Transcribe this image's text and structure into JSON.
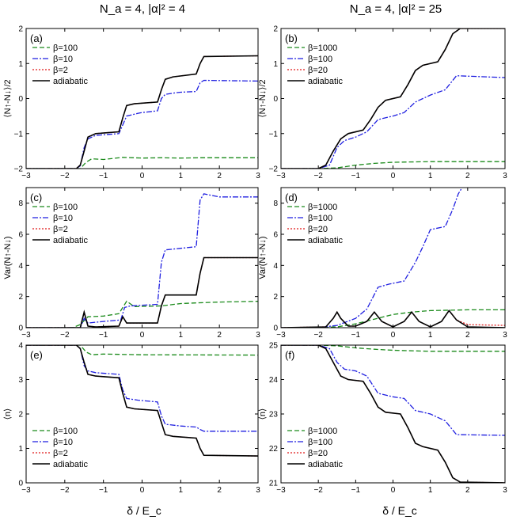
{
  "figure": {
    "column_titles": [
      "N_a = 4, |α|² = 4",
      "N_a = 4, |α|² = 25"
    ],
    "xlabel": "δ / E_c",
    "colors": {
      "beta_large": "#1a8a1a",
      "beta_mid": "#1f1fe0",
      "beta_small": "#e01818",
      "adiabatic": "#000000"
    }
  },
  "chart_data": [
    {
      "panel": "(a)",
      "type": "line",
      "ylabel": "⟨N↑-N↓⟩/2",
      "xlim": [
        -3,
        3
      ],
      "ylim": [
        -2,
        2
      ],
      "xticks": [
        -3,
        -2,
        -1,
        0,
        1,
        2,
        3
      ],
      "yticks": [
        -2,
        -1,
        0,
        1,
        2
      ],
      "legend_position": "top-left",
      "series": [
        {
          "name": "β=100",
          "color": "#1a8a1a",
          "dash": "6,3",
          "x": [
            -3,
            -1.6,
            -1.45,
            -1.3,
            -1.0,
            -0.5,
            0.0,
            0.5,
            1.0,
            1.5,
            3
          ],
          "y": [
            -2,
            -2,
            -1.82,
            -1.72,
            -1.74,
            -1.68,
            -1.7,
            -1.69,
            -1.7,
            -1.69,
            -1.69
          ]
        },
        {
          "name": "β=10",
          "color": "#1f1fe0",
          "dash": "7,2,2,2",
          "x": [
            -3,
            -1.7,
            -1.6,
            -1.5,
            -1.4,
            -1.2,
            -0.6,
            -0.5,
            -0.4,
            -0.1,
            0.0,
            0.4,
            0.5,
            0.6,
            0.9,
            1.0,
            1.4,
            1.5,
            1.6,
            3
          ],
          "y": [
            -2,
            -2,
            -1.92,
            -1.4,
            -1.15,
            -1.05,
            -1.0,
            -0.75,
            -0.5,
            -0.42,
            -0.4,
            -0.35,
            0.0,
            0.12,
            0.17,
            0.18,
            0.2,
            0.45,
            0.52,
            0.5
          ]
        },
        {
          "name": "β=2",
          "color": "#e01818",
          "dash": "2,2",
          "x": [
            -3,
            -1.7,
            -1.6,
            -1.5,
            -1.4,
            -1.2,
            -0.6,
            -0.5,
            -0.4,
            -0.2,
            0.4,
            0.5,
            0.6,
            0.8,
            1.4,
            1.5,
            1.6,
            3
          ],
          "y": [
            -2,
            -2,
            -1.9,
            -1.5,
            -1.1,
            -1.0,
            -0.95,
            -0.55,
            -0.2,
            -0.15,
            -0.1,
            0.25,
            0.55,
            0.62,
            0.7,
            1.0,
            1.2,
            1.22
          ]
        },
        {
          "name": "adiabatic",
          "color": "#000000",
          "dash": "",
          "x": [
            -3,
            -1.7,
            -1.6,
            -1.5,
            -1.4,
            -1.2,
            -0.6,
            -0.5,
            -0.4,
            -0.2,
            0.4,
            0.5,
            0.6,
            0.8,
            1.4,
            1.5,
            1.6,
            3
          ],
          "y": [
            -2,
            -2,
            -1.9,
            -1.5,
            -1.1,
            -1.0,
            -0.95,
            -0.55,
            -0.2,
            -0.15,
            -0.1,
            0.25,
            0.55,
            0.62,
            0.7,
            1.0,
            1.2,
            1.22
          ]
        }
      ]
    },
    {
      "panel": "(b)",
      "type": "line",
      "ylabel": "⟨N↑-N↓⟩/2",
      "xlim": [
        -3,
        3
      ],
      "ylim": [
        -2,
        2
      ],
      "xticks": [
        -3,
        -2,
        -1,
        0,
        1,
        2,
        3
      ],
      "yticks": [
        -2,
        -1,
        0,
        1,
        2
      ],
      "legend_position": "top-left",
      "series": [
        {
          "name": "β=1000",
          "color": "#1a8a1a",
          "dash": "6,3",
          "x": [
            -3,
            -2.0,
            -1.5,
            -1.0,
            -0.5,
            0.0,
            1.0,
            3
          ],
          "y": [
            -2,
            -2,
            -1.98,
            -1.9,
            -1.85,
            -1.82,
            -1.8,
            -1.8
          ]
        },
        {
          "name": "β=100",
          "color": "#1f1fe0",
          "dash": "7,2,2,2",
          "x": [
            -3,
            -2.0,
            -1.7,
            -1.5,
            -1.3,
            -1.0,
            -0.7,
            -0.4,
            0.0,
            0.3,
            0.6,
            1.0,
            1.4,
            1.7,
            3
          ],
          "y": [
            -2,
            -2,
            -1.9,
            -1.4,
            -1.2,
            -1.1,
            -0.95,
            -0.6,
            -0.5,
            -0.4,
            -0.1,
            0.1,
            0.25,
            0.65,
            0.6
          ]
        },
        {
          "name": "β=20",
          "color": "#e01818",
          "dash": "2,2",
          "x": [
            -3,
            -2.0,
            -1.8,
            -1.6,
            -1.4,
            -1.2,
            -0.8,
            -0.6,
            -0.4,
            -0.2,
            0.2,
            0.4,
            0.6,
            0.8,
            1.2,
            1.4,
            1.6,
            1.8,
            3
          ],
          "y": [
            -2,
            -2,
            -1.9,
            -1.5,
            -1.15,
            -1.0,
            -0.9,
            -0.6,
            -0.25,
            -0.05,
            0.05,
            0.4,
            0.8,
            0.95,
            1.05,
            1.4,
            1.85,
            2.0,
            2.0
          ]
        },
        {
          "name": "adiabatic",
          "color": "#000000",
          "dash": "",
          "x": [
            -3,
            -2.0,
            -1.8,
            -1.6,
            -1.4,
            -1.2,
            -0.8,
            -0.6,
            -0.4,
            -0.2,
            0.2,
            0.4,
            0.6,
            0.8,
            1.2,
            1.4,
            1.6,
            1.8,
            3
          ],
          "y": [
            -2,
            -2,
            -1.9,
            -1.5,
            -1.15,
            -1.0,
            -0.9,
            -0.6,
            -0.25,
            -0.05,
            0.05,
            0.4,
            0.8,
            0.95,
            1.05,
            1.4,
            1.85,
            2.0,
            2.0
          ]
        }
      ]
    },
    {
      "panel": "(c)",
      "type": "line",
      "ylabel": "Var(N↑-N↓)",
      "xlim": [
        -3,
        3
      ],
      "ylim": [
        0,
        9
      ],
      "xticks": [
        -3,
        -2,
        -1,
        0,
        1,
        2,
        3
      ],
      "yticks": [
        0,
        2,
        4,
        6,
        8
      ],
      "legend_position": "top-left",
      "series": [
        {
          "name": "β=100",
          "color": "#1a8a1a",
          "dash": "6,3",
          "x": [
            -3,
            -1.8,
            -1.6,
            -1.4,
            -1.0,
            -0.6,
            -0.4,
            -0.2,
            0.5,
            1.0,
            1.5,
            2.0,
            3
          ],
          "y": [
            0,
            0,
            0.2,
            0.7,
            0.75,
            0.9,
            1.7,
            1.35,
            1.4,
            1.55,
            1.6,
            1.65,
            1.7
          ]
        },
        {
          "name": "β=10",
          "color": "#1f1fe0",
          "dash": "7,2,2,2",
          "x": [
            -3,
            -1.6,
            -1.5,
            -1.4,
            -1.0,
            -0.55,
            -0.45,
            -0.3,
            0.4,
            0.5,
            0.6,
            1.0,
            1.4,
            1.5,
            1.6,
            2.0,
            3
          ],
          "y": [
            0,
            0,
            0.6,
            0.3,
            0.4,
            0.5,
            1.3,
            1.4,
            1.5,
            4.2,
            5.0,
            5.1,
            5.2,
            8.2,
            8.6,
            8.4,
            8.4
          ]
        },
        {
          "name": "β=2",
          "color": "#e01818",
          "dash": "2,2",
          "x": [
            -3,
            -1.6,
            -1.5,
            -1.4,
            -1.2,
            -0.6,
            -0.5,
            -0.4,
            0.4,
            0.5,
            0.6,
            1.4,
            1.5,
            1.6,
            3
          ],
          "y": [
            0,
            0,
            1.0,
            0.1,
            0.05,
            0.1,
            0.7,
            0.3,
            0.3,
            1.4,
            2.1,
            2.1,
            3.5,
            4.5,
            4.5
          ]
        },
        {
          "name": "adiabatic",
          "color": "#000000",
          "dash": "",
          "x": [
            -3,
            -1.6,
            -1.5,
            -1.4,
            -1.2,
            -0.6,
            -0.5,
            -0.4,
            0.4,
            0.5,
            0.6,
            1.4,
            1.5,
            1.6,
            3
          ],
          "y": [
            0,
            0,
            1.0,
            0.1,
            0.05,
            0.1,
            0.7,
            0.3,
            0.3,
            1.4,
            2.1,
            2.1,
            3.5,
            4.5,
            4.5
          ]
        }
      ]
    },
    {
      "panel": "(d)",
      "type": "line",
      "ylabel": "Var(N↑-N↓)",
      "xlim": [
        -3,
        3
      ],
      "ylim": [
        0,
        9
      ],
      "xticks": [
        -3,
        -2,
        -1,
        0,
        1,
        2,
        3
      ],
      "yticks": [
        0,
        2,
        4,
        6,
        8
      ],
      "legend_position": "top-left",
      "series": [
        {
          "name": "β=1000",
          "color": "#1a8a1a",
          "dash": "6,3",
          "x": [
            -3,
            -2.0,
            -1.5,
            -1.0,
            -0.5,
            0.0,
            0.5,
            1.0,
            2.0,
            3
          ],
          "y": [
            0,
            0,
            0.05,
            0.25,
            0.55,
            0.85,
            1.0,
            1.1,
            1.15,
            1.15
          ]
        },
        {
          "name": "β=100",
          "color": "#1f1fe0",
          "dash": "7,2,2,2",
          "x": [
            -3,
            -2.0,
            -1.5,
            -1.0,
            -0.7,
            -0.4,
            -0.1,
            0.3,
            0.6,
            0.8,
            1.0,
            1.4,
            1.6,
            1.75,
            1.85
          ],
          "y": [
            0,
            0,
            0.15,
            0.6,
            1.2,
            2.6,
            2.8,
            3.0,
            4.2,
            5.2,
            6.3,
            6.5,
            7.6,
            8.6,
            9.0
          ]
        },
        {
          "name": "β=20",
          "color": "#e01818",
          "dash": "2,2",
          "x": [
            -3,
            -1.8,
            -1.6,
            -1.5,
            -1.4,
            -1.2,
            -1.0,
            -0.7,
            -0.5,
            -0.3,
            0.0,
            0.3,
            0.5,
            0.7,
            1.0,
            1.3,
            1.5,
            1.7,
            2.0,
            3
          ],
          "y": [
            0,
            0.05,
            0.6,
            1.0,
            0.6,
            0.1,
            0.1,
            0.4,
            1.0,
            0.4,
            0.05,
            0.4,
            1.0,
            0.4,
            0.05,
            0.4,
            1.1,
            0.5,
            0.2,
            0.15
          ]
        },
        {
          "name": "adiabatic",
          "color": "#000000",
          "dash": "",
          "x": [
            -3,
            -1.8,
            -1.6,
            -1.5,
            -1.4,
            -1.2,
            -1.0,
            -0.7,
            -0.5,
            -0.3,
            0.0,
            0.3,
            0.5,
            0.7,
            1.0,
            1.3,
            1.5,
            1.7,
            2.0,
            3
          ],
          "y": [
            0,
            0.05,
            0.6,
            1.0,
            0.6,
            0.1,
            0.1,
            0.4,
            1.0,
            0.4,
            0.05,
            0.4,
            1.0,
            0.4,
            0.05,
            0.4,
            1.1,
            0.5,
            0.05,
            0.0
          ]
        }
      ]
    },
    {
      "panel": "(e)",
      "type": "line",
      "ylabel": "⟨n⟩",
      "xlim": [
        -3,
        3
      ],
      "ylim": [
        0,
        4
      ],
      "xticks": [
        -3,
        -2,
        -1,
        0,
        1,
        2,
        3
      ],
      "yticks": [
        0,
        1,
        2,
        3,
        4
      ],
      "legend_position": "bottom-left",
      "series": [
        {
          "name": "β=100",
          "color": "#1a8a1a",
          "dash": "6,3",
          "x": [
            -3,
            -1.6,
            -1.45,
            -1.3,
            -1.0,
            0.0,
            3
          ],
          "y": [
            4,
            4,
            3.8,
            3.72,
            3.74,
            3.72,
            3.71
          ]
        },
        {
          "name": "β=10",
          "color": "#1f1fe0",
          "dash": "7,2,2,2",
          "x": [
            -3,
            -1.7,
            -1.6,
            -1.5,
            -1.4,
            -1.2,
            -0.6,
            -0.5,
            -0.4,
            -0.1,
            0.4,
            0.5,
            0.6,
            1.0,
            1.4,
            1.5,
            1.6,
            3
          ],
          "y": [
            4,
            4,
            3.9,
            3.4,
            3.25,
            3.2,
            3.15,
            2.7,
            2.45,
            2.4,
            2.35,
            1.95,
            1.7,
            1.65,
            1.62,
            1.55,
            1.5,
            1.5
          ]
        },
        {
          "name": "β=2",
          "color": "#e01818",
          "dash": "2,2",
          "x": [
            -3,
            -1.7,
            -1.6,
            -1.5,
            -1.4,
            -1.2,
            -0.6,
            -0.5,
            -0.4,
            -0.2,
            0.4,
            0.5,
            0.6,
            0.8,
            1.4,
            1.5,
            1.6,
            3
          ],
          "y": [
            4,
            4,
            3.9,
            3.5,
            3.15,
            3.1,
            3.05,
            2.6,
            2.2,
            2.15,
            2.1,
            1.75,
            1.4,
            1.35,
            1.3,
            1.0,
            0.8,
            0.78
          ]
        },
        {
          "name": "adiabatic",
          "color": "#000000",
          "dash": "",
          "x": [
            -3,
            -1.7,
            -1.6,
            -1.5,
            -1.4,
            -1.2,
            -0.6,
            -0.5,
            -0.4,
            -0.2,
            0.4,
            0.5,
            0.6,
            0.8,
            1.4,
            1.5,
            1.6,
            3
          ],
          "y": [
            4,
            4,
            3.9,
            3.5,
            3.15,
            3.1,
            3.05,
            2.6,
            2.2,
            2.15,
            2.1,
            1.75,
            1.4,
            1.35,
            1.3,
            1.0,
            0.8,
            0.78
          ]
        }
      ]
    },
    {
      "panel": "(f)",
      "type": "line",
      "ylabel": "⟨n⟩",
      "xlim": [
        -3,
        3
      ],
      "ylim": [
        21,
        25
      ],
      "xticks": [
        -3,
        -2,
        -1,
        0,
        1,
        2,
        3
      ],
      "yticks": [
        21,
        22,
        23,
        24,
        25
      ],
      "legend_position": "bottom-left",
      "series": [
        {
          "name": "β=1000",
          "color": "#1a8a1a",
          "dash": "6,3",
          "x": [
            -3,
            -2.0,
            -1.5,
            -1.0,
            -0.5,
            0.0,
            1.0,
            3
          ],
          "y": [
            25,
            25,
            24.98,
            24.92,
            24.88,
            24.85,
            24.82,
            24.82
          ]
        },
        {
          "name": "β=100",
          "color": "#1f1fe0",
          "dash": "7,2,2,2",
          "x": [
            -3,
            -2.0,
            -1.7,
            -1.5,
            -1.3,
            -1.0,
            -0.7,
            -0.4,
            0.0,
            0.3,
            0.6,
            1.0,
            1.4,
            1.7,
            3
          ],
          "y": [
            25,
            25,
            24.9,
            24.5,
            24.3,
            24.25,
            24.1,
            23.6,
            23.5,
            23.45,
            23.1,
            23.0,
            22.8,
            22.4,
            22.38
          ]
        },
        {
          "name": "β=20",
          "color": "#e01818",
          "dash": "2,2",
          "x": [
            -3,
            -2.0,
            -1.8,
            -1.6,
            -1.4,
            -1.2,
            -0.8,
            -0.6,
            -0.4,
            -0.2,
            0.2,
            0.4,
            0.6,
            0.8,
            1.2,
            1.4,
            1.6,
            1.8,
            3
          ],
          "y": [
            25,
            25,
            24.9,
            24.5,
            24.1,
            24.0,
            23.95,
            23.6,
            23.2,
            23.05,
            23.0,
            22.6,
            22.15,
            22.05,
            21.95,
            21.6,
            21.15,
            21.02,
            21.0
          ]
        },
        {
          "name": "adiabatic",
          "color": "#000000",
          "dash": "",
          "x": [
            -3,
            -2.0,
            -1.8,
            -1.6,
            -1.4,
            -1.2,
            -0.8,
            -0.6,
            -0.4,
            -0.2,
            0.2,
            0.4,
            0.6,
            0.8,
            1.2,
            1.4,
            1.6,
            1.8,
            3
          ],
          "y": [
            25,
            25,
            24.9,
            24.5,
            24.1,
            24.0,
            23.95,
            23.6,
            23.2,
            23.05,
            23.0,
            22.6,
            22.15,
            22.05,
            21.95,
            21.6,
            21.15,
            21.02,
            21.0
          ]
        }
      ]
    }
  ]
}
